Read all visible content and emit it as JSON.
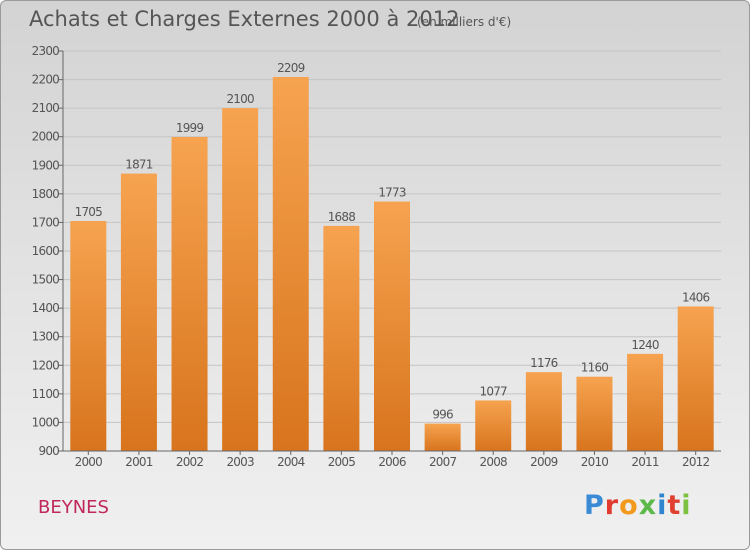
{
  "title": "Achats et Charges Externes 2000 à 2012",
  "unit_note": "(en milliers d'€)",
  "location": "BEYNES",
  "logo": {
    "text": "Proxiti",
    "letter_colors": [
      "#3a8ad6",
      "#e23a2e",
      "#f29a1e",
      "#5db84a",
      "#2f86cf",
      "#e0402f",
      "#7cc142"
    ]
  },
  "colors": {
    "bar_top": "#f6a350",
    "bar_bottom": "#d8741d",
    "grid": "#c4c4c4",
    "label": "#555555"
  },
  "chart_data": {
    "type": "bar",
    "title": "Achats et Charges Externes 2000 à 2012",
    "xlabel": "",
    "ylabel": "",
    "categories": [
      "2000",
      "2001",
      "2002",
      "2003",
      "2004",
      "2005",
      "2006",
      "2007",
      "2008",
      "2009",
      "2010",
      "2011",
      "2012"
    ],
    "values": [
      1705,
      1871,
      1999,
      2100,
      2209,
      1688,
      1773,
      996,
      1077,
      1176,
      1160,
      1240,
      1406
    ],
    "ylim": [
      900,
      2300
    ],
    "yticks": [
      900,
      1000,
      1100,
      1200,
      1300,
      1400,
      1500,
      1600,
      1700,
      1800,
      1900,
      2000,
      2100,
      2200,
      2300
    ],
    "grid": true
  }
}
